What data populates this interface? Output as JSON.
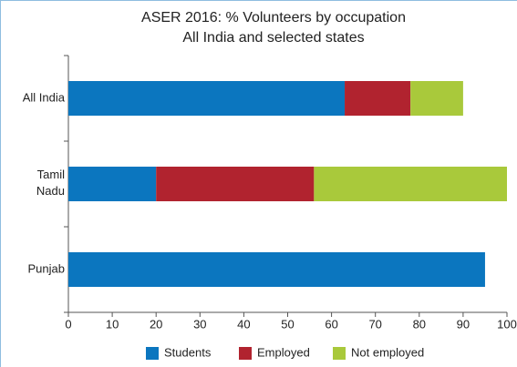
{
  "chart_data": {
    "type": "stacked_barh",
    "title": "ASER 2016: % Volunteers by occupation",
    "subtitle": "All India and selected states",
    "categories": [
      "All India",
      "Tamil Nadu",
      "Punjab"
    ],
    "series": [
      {
        "name": "Students",
        "color": "#0b76bf",
        "values": [
          63,
          20,
          95
        ]
      },
      {
        "name": "Employed",
        "color": "#b1232f",
        "values": [
          15,
          36,
          0
        ]
      },
      {
        "name": "Not employed",
        "color": "#a9c93b",
        "values": [
          12,
          44,
          0
        ]
      }
    ],
    "xlim": [
      0,
      100
    ],
    "xticks": [
      0,
      10,
      20,
      30,
      40,
      50,
      60,
      70,
      80,
      90,
      100
    ],
    "legend": "bottom"
  }
}
